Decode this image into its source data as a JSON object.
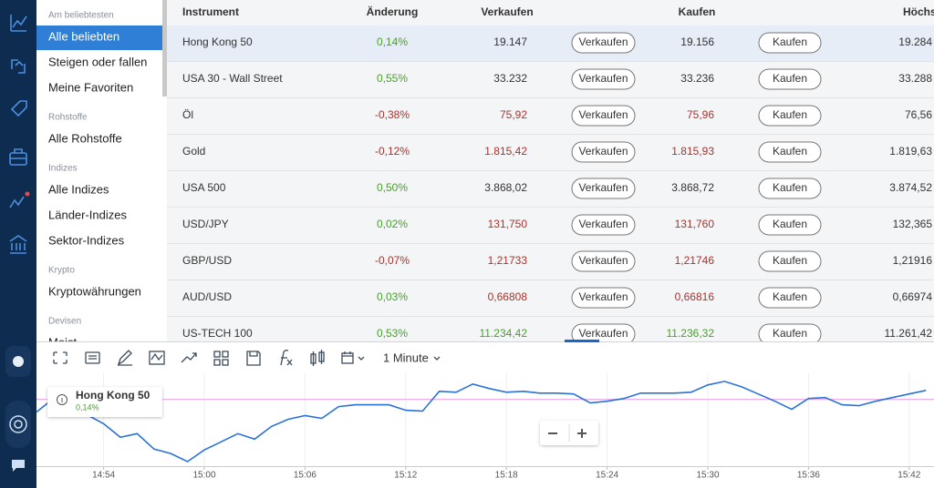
{
  "sidebar": {
    "sections": [
      {
        "heading": "Am beliebtesten",
        "items": [
          "Alle beliebten",
          "Steigen oder fallen",
          "Meine Favoriten"
        ]
      },
      {
        "heading": "Rohstoffe",
        "items": [
          "Alle Rohstoffe"
        ]
      },
      {
        "heading": "Indizes",
        "items": [
          "Alle Indizes",
          "Länder-Indizes",
          "Sektor-Indizes"
        ]
      },
      {
        "heading": "Krypto",
        "items": [
          "Kryptowährungen"
        ]
      },
      {
        "heading": "Devisen",
        "items": [
          "Meist"
        ]
      }
    ]
  },
  "table": {
    "columns": [
      "Instrument",
      "Änderung",
      "Verkaufen",
      "Kaufen",
      "Höchs"
    ],
    "sell_button": "Verkaufen",
    "buy_button": "Kaufen",
    "rows": [
      {
        "instrument": "Hong Kong 50",
        "change": "0,14%",
        "change_color": "#4a9e2c",
        "sell": "19.147",
        "buy": "19.156",
        "price_color": "#333333",
        "high": "19.284",
        "selected": true
      },
      {
        "instrument": "USA 30 - Wall Street",
        "change": "0,55%",
        "change_color": "#4a9e2c",
        "sell": "33.232",
        "buy": "33.236",
        "price_color": "#333333",
        "high": "33.288"
      },
      {
        "instrument": "Öl",
        "change": "-0,38%",
        "change_color": "#a8332d",
        "sell": "75,92",
        "buy": "75,96",
        "price_color": "#a8332d",
        "high": "76,56"
      },
      {
        "instrument": "Gold",
        "change": "-0,12%",
        "change_color": "#a8332d",
        "sell": "1.815,42",
        "buy": "1.815,93",
        "price_color": "#a8332d",
        "high": "1.819,63"
      },
      {
        "instrument": "USA 500",
        "change": "0,50%",
        "change_color": "#4a9e2c",
        "sell": "3.868,02",
        "buy": "3.868,72",
        "price_color": "#333333",
        "high": "3.874,52"
      },
      {
        "instrument": "USD/JPY",
        "change": "0,02%",
        "change_color": "#4a9e2c",
        "sell": "131,750",
        "buy": "131,760",
        "price_color": "#a8332d",
        "high": "132,365"
      },
      {
        "instrument": "GBP/USD",
        "change": "-0,07%",
        "change_color": "#a8332d",
        "sell": "1,21733",
        "buy": "1,21746",
        "price_color": "#a8332d",
        "high": "1,21916"
      },
      {
        "instrument": "AUD/USD",
        "change": "0,03%",
        "change_color": "#4a9e2c",
        "sell": "0,66808",
        "buy": "0,66816",
        "price_color": "#a8332d",
        "high": "0,66974"
      },
      {
        "instrument": "US-TECH 100",
        "change": "0,53%",
        "change_color": "#4a9e2c",
        "sell": "11.234,42",
        "buy": "11.236,32",
        "price_color": "#4a9e2c",
        "high": "11.261,42"
      }
    ]
  },
  "toolbar": {
    "interval": "1 Minute"
  },
  "tooltip": {
    "name": "Hong Kong 50",
    "change": "0,14%"
  },
  "chart_data": {
    "type": "line",
    "color": "#2a72d6",
    "reference_value": 19140,
    "reference_color": "#e9a6e6",
    "grid": true,
    "ylim": [
      19103,
      19157
    ],
    "categories": [
      null,
      null,
      null,
      null,
      "14:54",
      null,
      null,
      null,
      null,
      null,
      "15:00",
      null,
      null,
      null,
      null,
      null,
      "15:06",
      null,
      null,
      null,
      null,
      null,
      "15:12",
      null,
      null,
      null,
      null,
      null,
      "15:18",
      null,
      null,
      null,
      null,
      null,
      "15:24",
      null,
      null,
      null,
      null,
      null,
      "15:30",
      null,
      null,
      null,
      null,
      null,
      "15:36",
      null,
      null,
      null,
      null,
      null,
      "15:42",
      null
    ],
    "values": [
      19133,
      19140.5,
      19139,
      19131.5,
      19126.5,
      19119,
      19121,
      19112.5,
      19110,
      19105.5,
      19112,
      19116.5,
      19121,
      19118,
      19125,
      19129,
      19131,
      19129.5,
      19136,
      19137,
      19137,
      19137,
      19134,
      19133.5,
      19144.5,
      19144,
      19148.5,
      19146,
      19144,
      19144.5,
      19143.5,
      19143.5,
      19143,
      19138,
      19139,
      19140.5,
      19143.5,
      19143.5,
      19143.5,
      19144,
      19148,
      19150,
      19147,
      19143,
      19139,
      19134.5,
      19140.5,
      19141,
      19137,
      19136.5,
      19139,
      19141,
      19143,
      19145
    ]
  }
}
